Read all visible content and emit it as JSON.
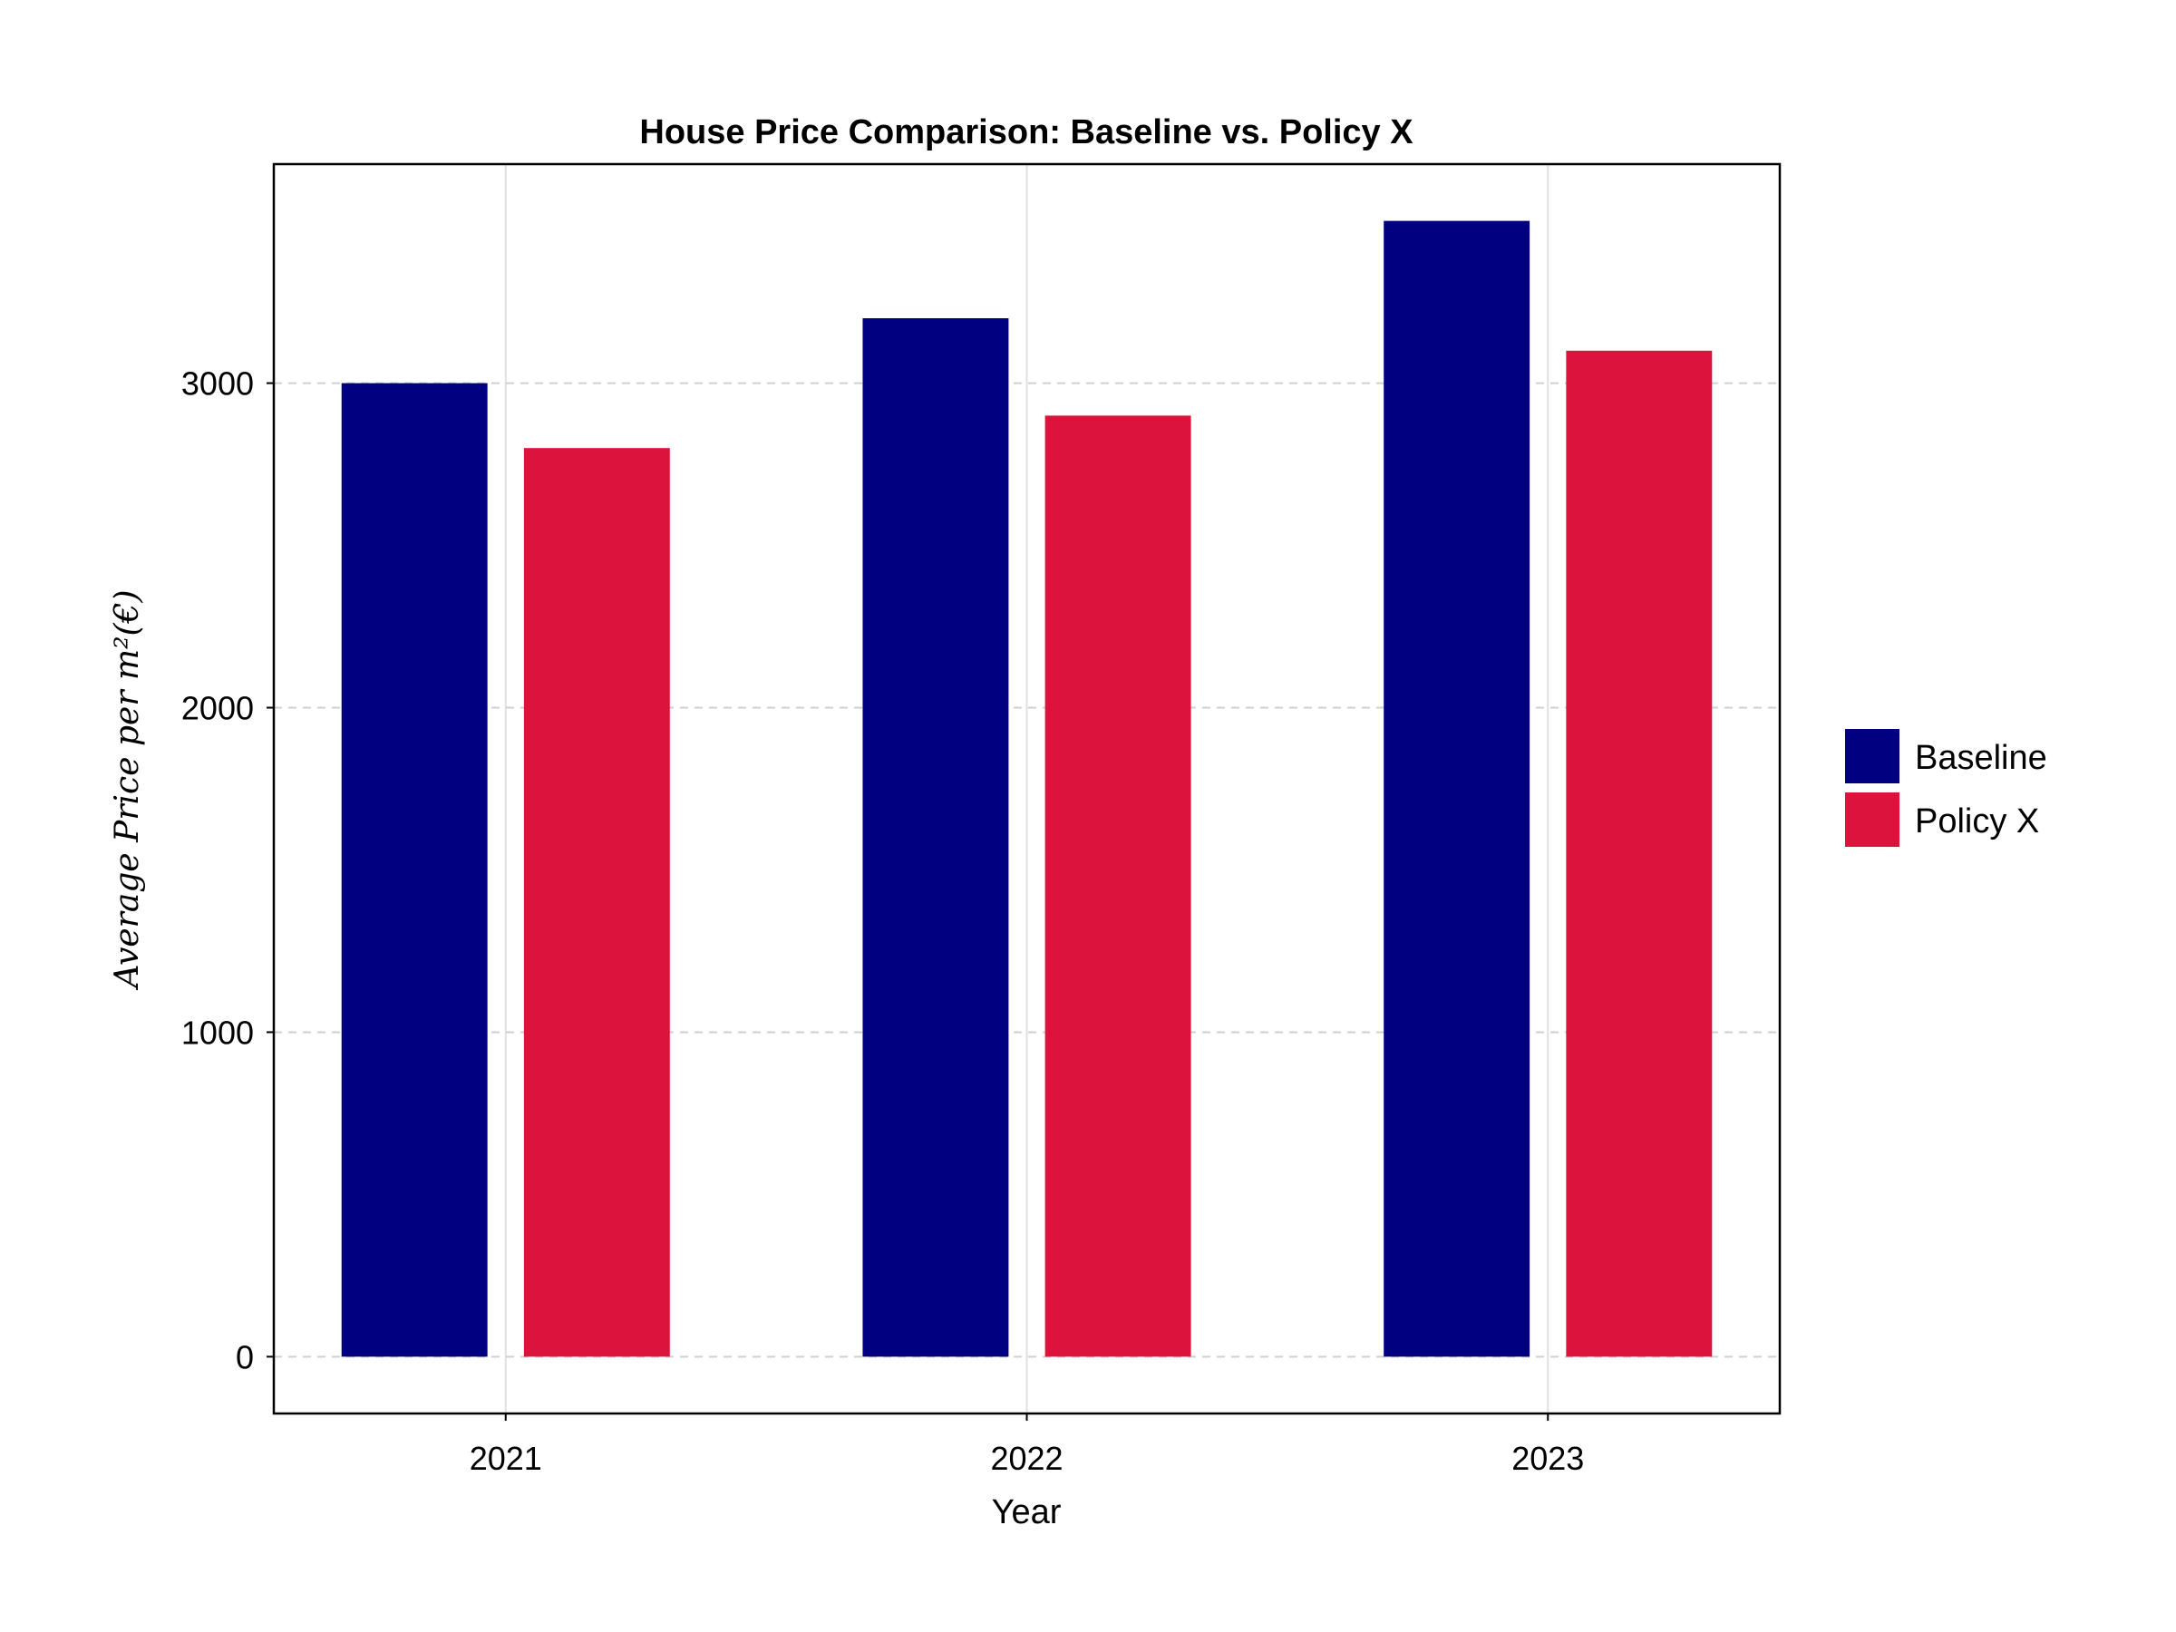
{
  "chart_data": {
    "type": "bar",
    "title": "House Price Comparison: Baseline vs. Policy X",
    "xlabel": "Year",
    "ylabel": "Average Price per m²(€)",
    "categories": [
      "2021",
      "2022",
      "2023"
    ],
    "series": [
      {
        "name": "Baseline",
        "color": "#000080",
        "values": [
          3000,
          3200,
          3500
        ]
      },
      {
        "name": "Policy X",
        "color": "#DC143C",
        "values": [
          2800,
          2900,
          3100
        ]
      }
    ],
    "ylim": [
      -175,
      3675
    ],
    "yticks": [
      0,
      1000,
      2000,
      3000
    ],
    "ytick_labels": [
      "0",
      "1000",
      "2000",
      "3000"
    ],
    "grid": true,
    "legend_position": "right"
  }
}
